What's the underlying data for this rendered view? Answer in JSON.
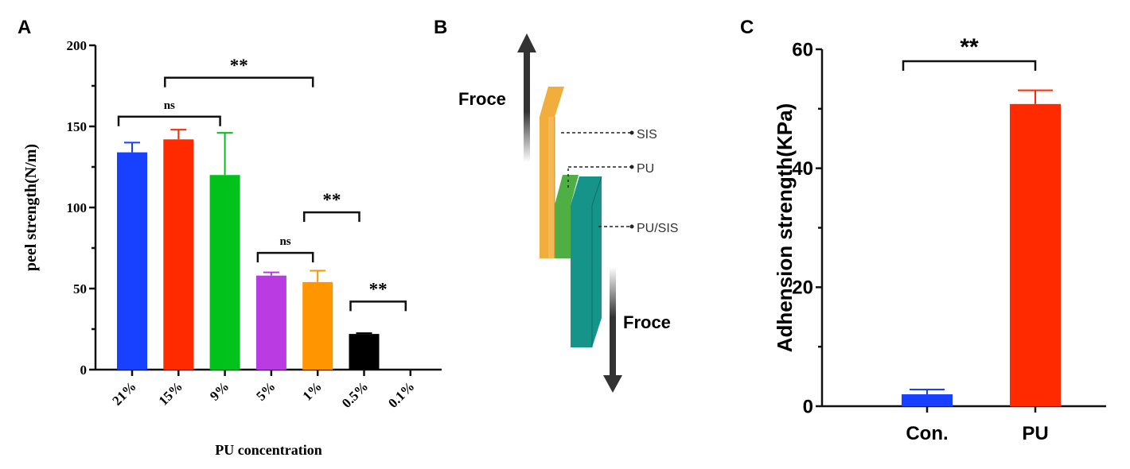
{
  "panels": {
    "a": "A",
    "b": "B",
    "c": "C"
  },
  "chart_data": [
    {
      "type": "bar",
      "title": "",
      "xlabel": "PU concentration",
      "ylabel": "peel strength(N/m)",
      "ylim": [
        0,
        200
      ],
      "yticks": [
        0,
        50,
        100,
        150,
        200
      ],
      "categories": [
        "21%",
        "15%",
        "9%",
        "5%",
        "1%",
        "0.5%",
        "0.1%"
      ],
      "values": [
        134,
        142,
        120,
        58,
        54,
        22,
        0
      ],
      "errors": [
        6,
        6,
        26,
        2,
        7,
        0.5,
        0
      ],
      "colors": [
        "#1740ff",
        "#ff2a00",
        "#00c21a",
        "#bb3be3",
        "#ff9500",
        "#000000",
        "#000000"
      ],
      "significance": [
        {
          "label": "ns",
          "from": 0,
          "to": 2,
          "y": 156
        },
        {
          "label": "**",
          "from": 1,
          "to": 4,
          "y": 180
        },
        {
          "label": "ns",
          "from": 3,
          "to": 4,
          "y": 72
        },
        {
          "label": "**",
          "from": 4,
          "to": 5,
          "y": 97
        },
        {
          "label": "**",
          "from": 5,
          "to": 6,
          "y": 42
        }
      ]
    },
    {
      "type": "bar",
      "title": "",
      "xlabel": "",
      "ylabel": "Adhension strength(KPa)",
      "ylim": [
        0,
        60
      ],
      "yticks": [
        0,
        20,
        40,
        60
      ],
      "categories": [
        "Con.",
        "PU"
      ],
      "values": [
        2.0,
        50.8
      ],
      "errors": [
        0.8,
        2.3
      ],
      "colors": [
        "#1740ff",
        "#ff2a00"
      ],
      "significance": [
        {
          "label": "**",
          "from": 0,
          "to": 1,
          "y": 58
        }
      ]
    }
  ],
  "diagram": {
    "force_top": "Froce",
    "force_bottom": "Froce",
    "labels": [
      "SIS",
      "PU",
      "PU/SIS"
    ],
    "colors": {
      "sis": "#f2ae3c",
      "pu": "#4fae44",
      "pu_sis": "#16948a"
    }
  }
}
